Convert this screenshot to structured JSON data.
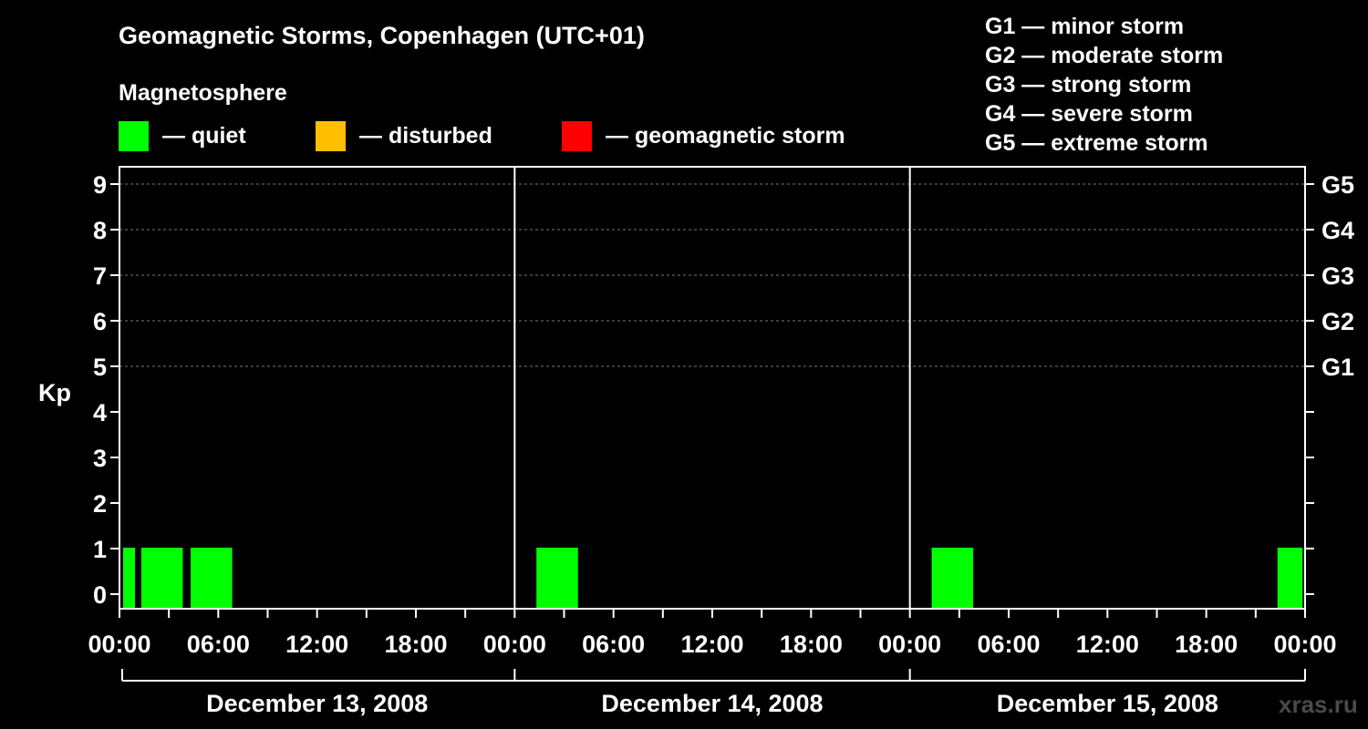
{
  "chart_data": {
    "type": "bar",
    "title": "Geomagnetic Storms, Copenhagen (UTC+01)",
    "legend_title": "Magnetosphere",
    "legend": [
      {
        "color": "#00ff00",
        "label": "— quiet"
      },
      {
        "color": "#ffbf00",
        "label": "— disturbed"
      },
      {
        "color": "#ff0000",
        "label": "— geomagnetic storm"
      }
    ],
    "storm_scale": [
      "G1 — minor storm",
      "G2 — moderate storm",
      "G3 — strong storm",
      "G4 — severe storm",
      "G5 — extreme storm"
    ],
    "ylabel": "Kp",
    "ylim": [
      0,
      9
    ],
    "yticks": [
      0,
      1,
      2,
      3,
      4,
      5,
      6,
      7,
      8,
      9
    ],
    "g_levels": [
      {
        "label": "G1",
        "kp": 5
      },
      {
        "label": "G2",
        "kp": 6
      },
      {
        "label": "G3",
        "kp": 7
      },
      {
        "label": "G4",
        "kp": 8
      },
      {
        "label": "G5",
        "kp": 9
      }
    ],
    "x_range_hours": [
      0,
      72
    ],
    "x_tick_labels": [
      {
        "hour": 0,
        "label": "00:00"
      },
      {
        "hour": 6,
        "label": "06:00"
      },
      {
        "hour": 12,
        "label": "12:00"
      },
      {
        "hour": 18,
        "label": "18:00"
      },
      {
        "hour": 24,
        "label": "00:00"
      },
      {
        "hour": 30,
        "label": "06:00"
      },
      {
        "hour": 36,
        "label": "12:00"
      },
      {
        "hour": 42,
        "label": "18:00"
      },
      {
        "hour": 48,
        "label": "00:00"
      },
      {
        "hour": 54,
        "label": "06:00"
      },
      {
        "hour": 60,
        "label": "12:00"
      },
      {
        "hour": 66,
        "label": "18:00"
      },
      {
        "hour": 72,
        "label": "00:00"
      }
    ],
    "days": [
      "December 13, 2008",
      "December 14, 2008",
      "December 15, 2008"
    ],
    "series": [
      {
        "name": "Kp",
        "bars": [
          {
            "start_hour": 0.0,
            "end_hour": 1.0,
            "kp": 1,
            "color": "#00ff00"
          },
          {
            "start_hour": 1.1,
            "end_hour": 3.9,
            "kp": 1,
            "color": "#00ff00"
          },
          {
            "start_hour": 4.1,
            "end_hour": 6.9,
            "kp": 1,
            "color": "#00ff00"
          },
          {
            "start_hour": 25.1,
            "end_hour": 27.9,
            "kp": 1,
            "color": "#00ff00"
          },
          {
            "start_hour": 49.1,
            "end_hour": 51.9,
            "kp": 1,
            "color": "#00ff00"
          },
          {
            "start_hour": 70.1,
            "end_hour": 71.9,
            "kp": 1,
            "color": "#00ff00"
          }
        ]
      }
    ]
  },
  "watermark": "xras.ru"
}
